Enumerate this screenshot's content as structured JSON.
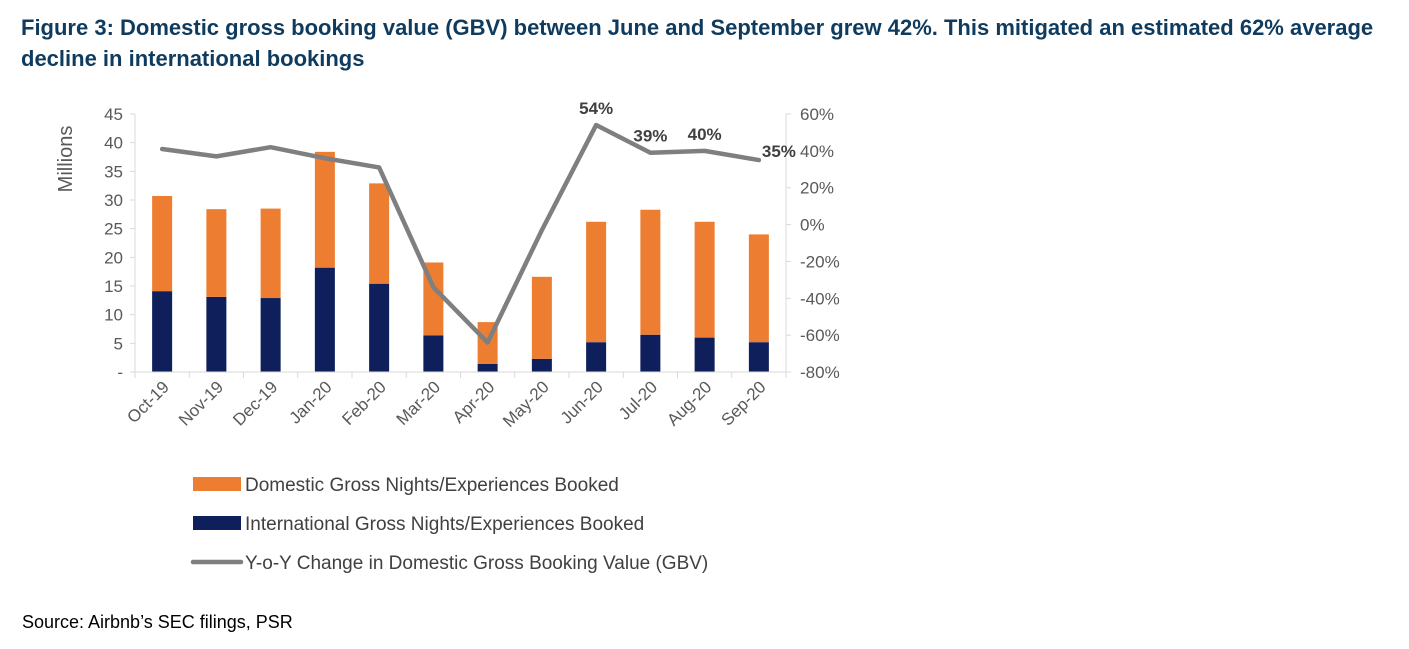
{
  "figure_title": "Figure 3: Domestic gross booking value (GBV) between June and September grew 42%. This mitigated an estimated 62% average decline in international bookings",
  "source_note": "Source: Airbnb’s SEC filings, PSR",
  "colors": {
    "domestic": "#ed7d31",
    "international": "#0e1f5b",
    "yoy_line": "#7f7f7f",
    "title": "#0f3b5f",
    "axis_text": "#595959"
  },
  "chart_data": {
    "type": "bar",
    "stacked": true,
    "categories": [
      "Oct-19",
      "Nov-19",
      "Dec-19",
      "Jan-20",
      "Feb-20",
      "Mar-20",
      "Apr-20",
      "May-20",
      "Jun-20",
      "Jul-20",
      "Aug-20",
      "Sep-20"
    ],
    "series": [
      {
        "name": "Domestic Gross Nights/Experiences Booked",
        "type": "bar",
        "axis": "left",
        "values": [
          16.6,
          15.3,
          15.6,
          20.2,
          17.5,
          12.7,
          7.3,
          14.3,
          21.0,
          21.8,
          20.2,
          18.8
        ]
      },
      {
        "name": "International Gross Nights/Experiences Booked",
        "type": "bar",
        "axis": "left",
        "values": [
          14.1,
          13.1,
          12.9,
          18.2,
          15.4,
          6.4,
          1.4,
          2.3,
          5.2,
          6.5,
          6.0,
          5.2
        ]
      },
      {
        "name": "Y-o-Y Change in Domestic Gross Booking Value (GBV)",
        "type": "line",
        "axis": "right",
        "values": [
          41,
          37,
          42,
          36,
          31,
          -34,
          -64,
          -3,
          54,
          39,
          40,
          35
        ]
      }
    ],
    "data_labels": [
      {
        "category": "Jun-20",
        "text": "54%"
      },
      {
        "category": "Jul-20",
        "text": "39%"
      },
      {
        "category": "Aug-20",
        "text": "40%"
      },
      {
        "category": "Sep-20",
        "text": "35%"
      }
    ],
    "ylabel": "Millions",
    "ylim": [
      0,
      45
    ],
    "yticks": [
      0,
      5,
      10,
      15,
      20,
      25,
      30,
      35,
      40,
      45
    ],
    "ytick_labels": [
      "-",
      "5",
      "10",
      "15",
      "20",
      "25",
      "30",
      "35",
      "40",
      "45"
    ],
    "y2lim": [
      -80,
      60
    ],
    "y2ticks": [
      -80,
      -60,
      -40,
      -20,
      0,
      20,
      40,
      60
    ],
    "y2tick_labels": [
      "-80%",
      "-60%",
      "-40%",
      "-20%",
      "0%",
      "20%",
      "40%",
      "60%"
    ],
    "grid": false,
    "legend_position": "bottom"
  }
}
